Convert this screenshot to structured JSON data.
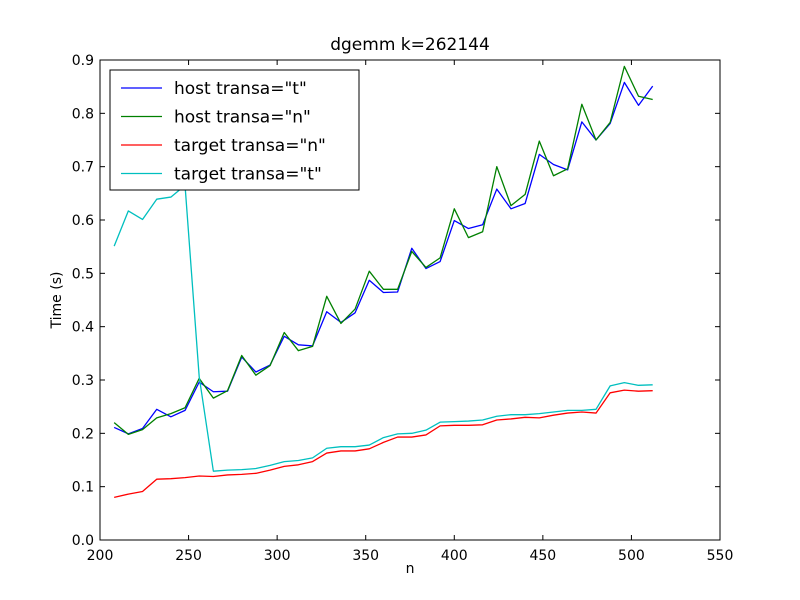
{
  "chart_data": {
    "type": "line",
    "title": "dgemm k=262144",
    "xlabel": "n",
    "ylabel": "Time (s)",
    "xlim": [
      200,
      550
    ],
    "ylim": [
      0.0,
      0.9
    ],
    "xticks": [
      "200",
      "250",
      "300",
      "350",
      "400",
      "450",
      "500",
      "550"
    ],
    "yticks": [
      "0.0",
      "0.1",
      "0.2",
      "0.3",
      "0.4",
      "0.5",
      "0.6",
      "0.7",
      "0.8",
      "0.9"
    ],
    "grid": false,
    "legend_position": "top-left",
    "x": [
      208,
      216,
      224,
      232,
      240,
      248,
      256,
      264,
      272,
      280,
      288,
      296,
      304,
      312,
      320,
      328,
      336,
      344,
      352,
      360,
      368,
      376,
      384,
      392,
      400,
      408,
      416,
      424,
      432,
      440,
      448,
      456,
      464,
      472,
      480,
      488,
      496,
      504,
      512
    ],
    "series": [
      {
        "name": "host transa=\"t\"",
        "color": "#0000ff",
        "values": [
          0.211,
          0.199,
          0.209,
          0.245,
          0.231,
          0.243,
          0.296,
          0.278,
          0.279,
          0.343,
          0.315,
          0.328,
          0.382,
          0.366,
          0.364,
          0.428,
          0.408,
          0.426,
          0.487,
          0.464,
          0.465,
          0.547,
          0.509,
          0.522,
          0.599,
          0.584,
          0.591,
          0.658,
          0.621,
          0.631,
          0.723,
          0.704,
          0.694,
          0.784,
          0.75,
          0.781,
          0.858,
          0.815,
          0.851
        ]
      },
      {
        "name": "host transa=\"n\"",
        "color": "#008000",
        "values": [
          0.22,
          0.198,
          0.207,
          0.229,
          0.237,
          0.248,
          0.303,
          0.266,
          0.28,
          0.346,
          0.309,
          0.327,
          0.389,
          0.355,
          0.363,
          0.457,
          0.406,
          0.433,
          0.504,
          0.47,
          0.47,
          0.541,
          0.511,
          0.529,
          0.621,
          0.567,
          0.578,
          0.7,
          0.627,
          0.648,
          0.748,
          0.683,
          0.696,
          0.817,
          0.75,
          0.783,
          0.888,
          0.832,
          0.826
        ]
      },
      {
        "name": "target transa=\"n\"",
        "color": "#ff0000",
        "values": [
          0.08,
          0.086,
          0.091,
          0.114,
          0.115,
          0.117,
          0.12,
          0.119,
          0.122,
          0.123,
          0.125,
          0.131,
          0.138,
          0.141,
          0.147,
          0.163,
          0.167,
          0.167,
          0.171,
          0.183,
          0.193,
          0.193,
          0.197,
          0.214,
          0.215,
          0.215,
          0.216,
          0.225,
          0.227,
          0.23,
          0.229,
          0.234,
          0.238,
          0.24,
          0.238,
          0.276,
          0.281,
          0.279,
          0.28
        ]
      },
      {
        "name": "target transa=\"t\"",
        "color": "#00bfbf",
        "values": [
          0.551,
          0.617,
          0.601,
          0.639,
          0.643,
          0.665,
          0.306,
          0.129,
          0.131,
          0.132,
          0.134,
          0.14,
          0.147,
          0.149,
          0.154,
          0.172,
          0.175,
          0.175,
          0.178,
          0.192,
          0.199,
          0.2,
          0.206,
          0.221,
          0.222,
          0.223,
          0.225,
          0.232,
          0.235,
          0.235,
          0.237,
          0.24,
          0.243,
          0.243,
          0.245,
          0.289,
          0.295,
          0.29,
          0.291
        ]
      }
    ]
  }
}
